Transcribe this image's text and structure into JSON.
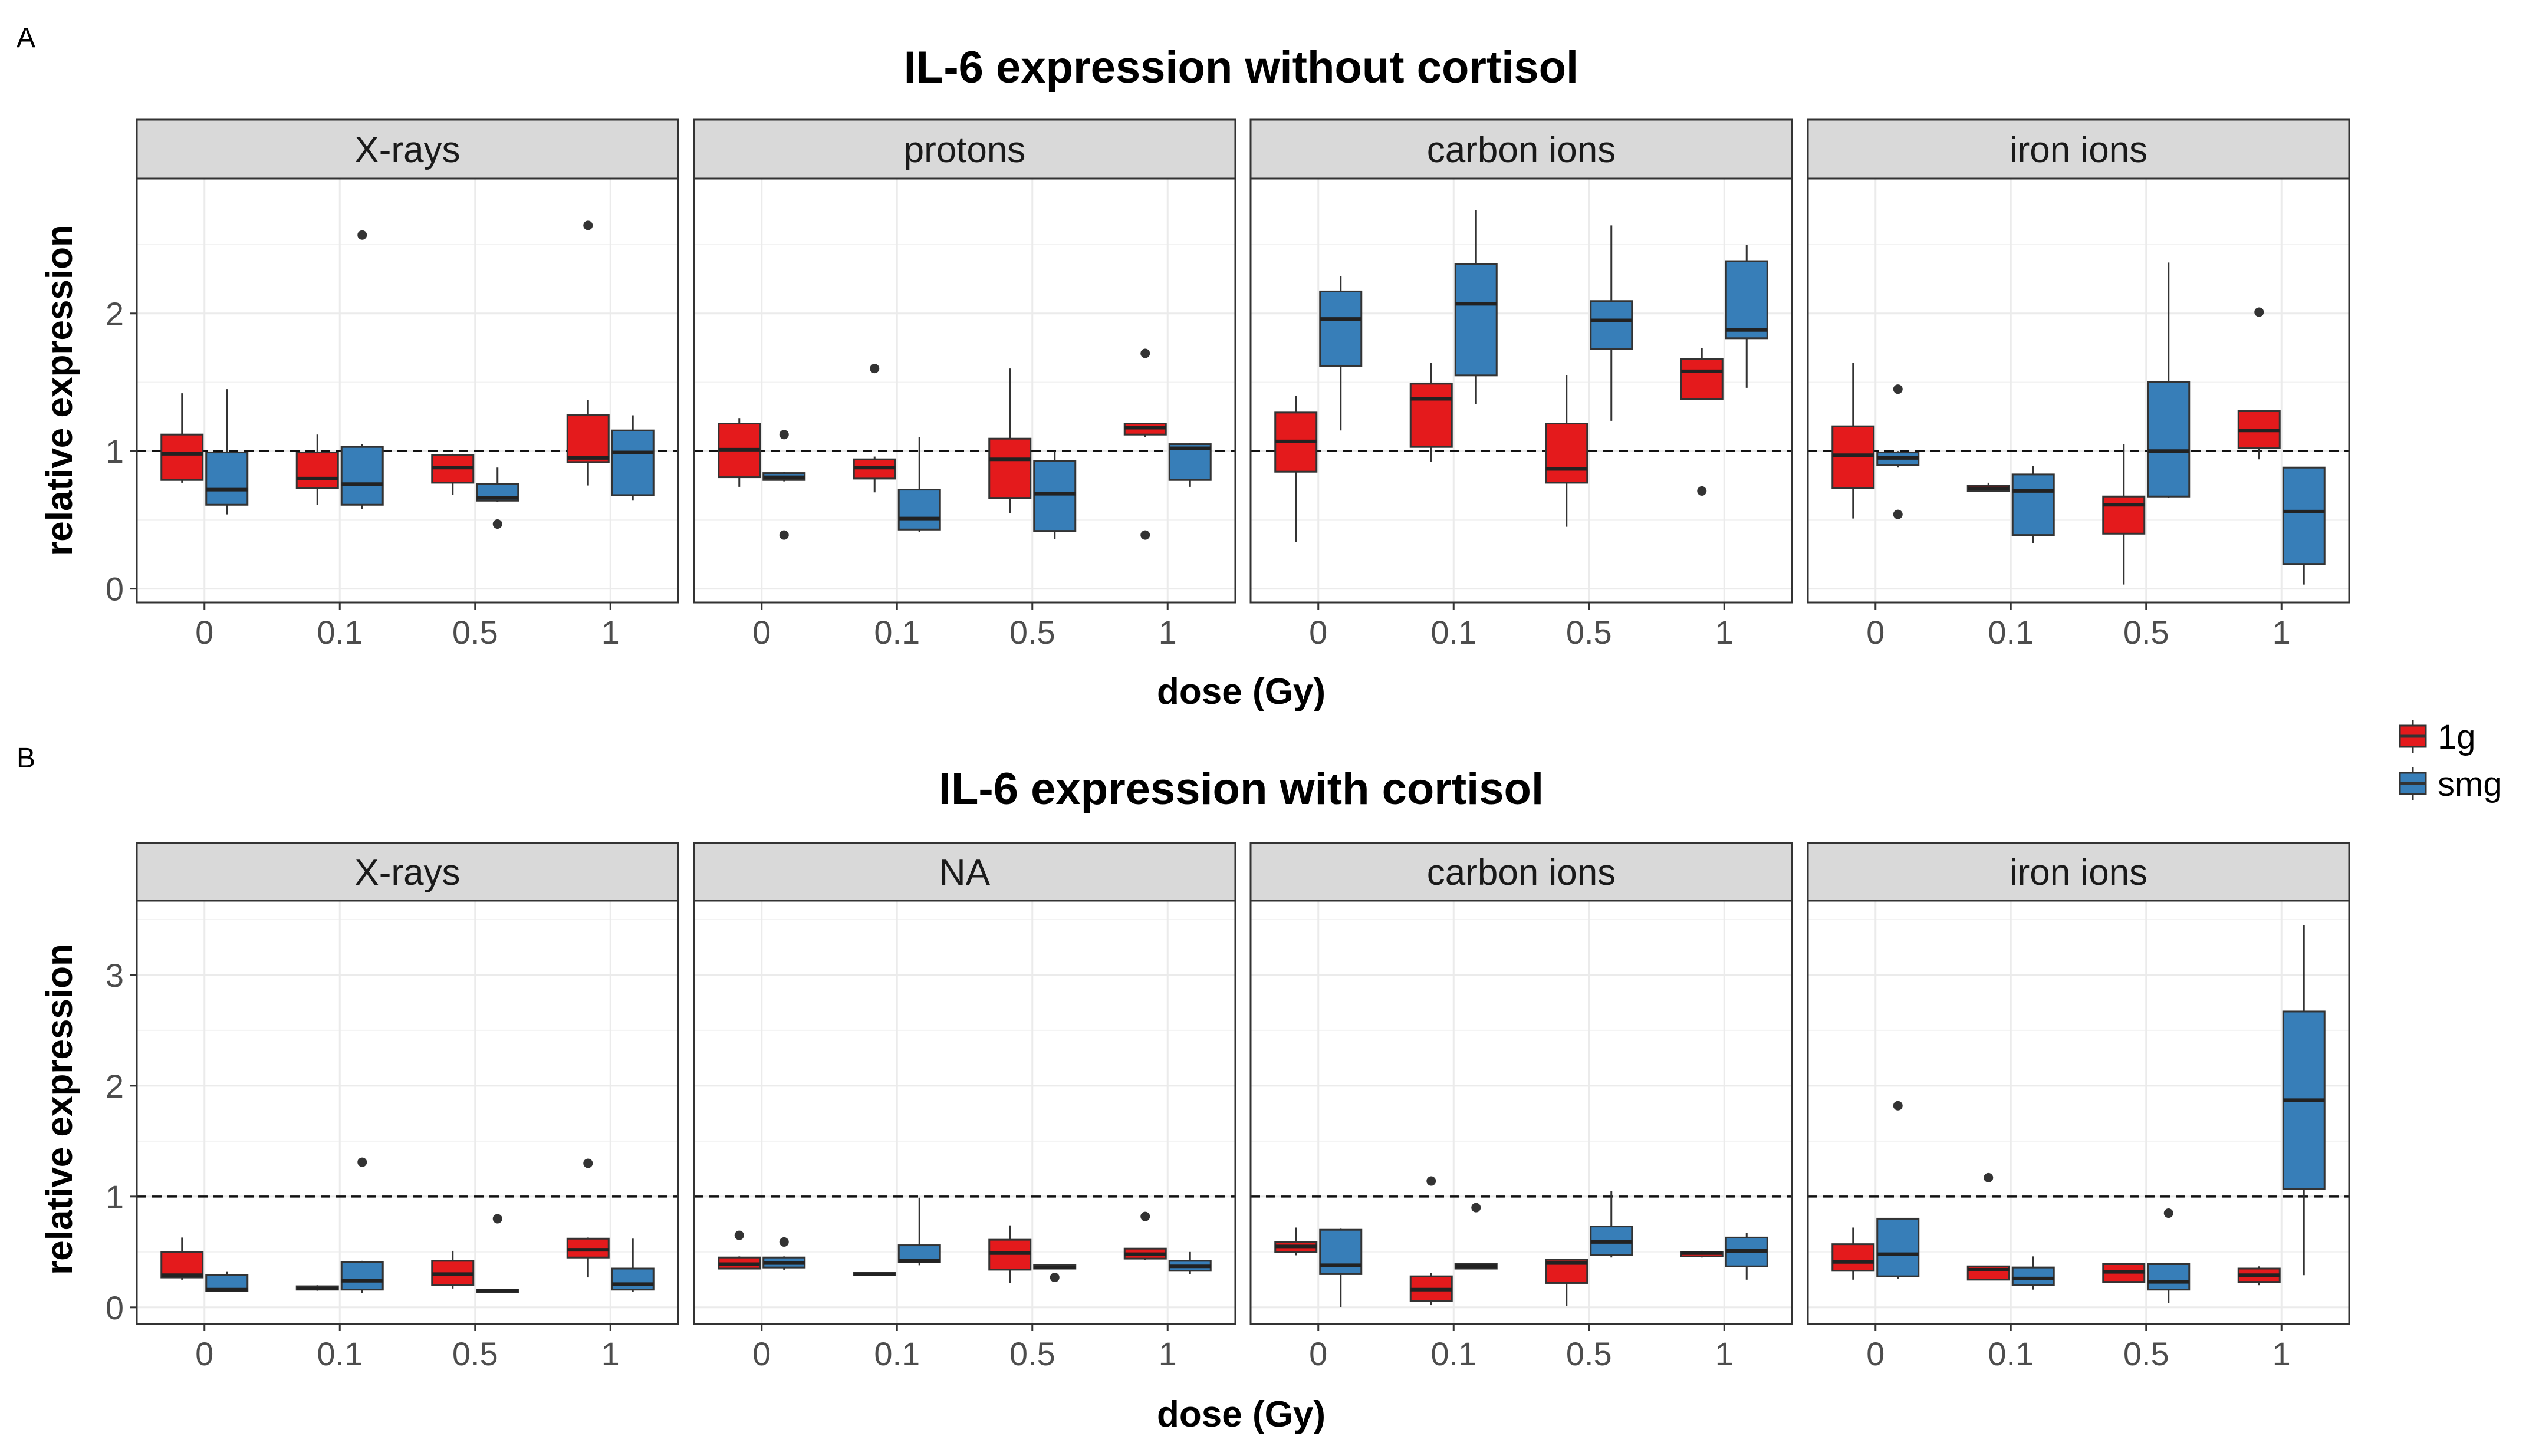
{
  "colors": {
    "1g": "#E41A1C",
    "smg": "#377EB8",
    "strip": "#D9D9D9",
    "grid": "#EBEBEB",
    "border": "#333333",
    "whisker": "#333333"
  },
  "legend": {
    "items": [
      {
        "key": "1g",
        "label": "1g"
      },
      {
        "key": "smg",
        "label": "smg"
      }
    ]
  },
  "chart_data": [
    {
      "type": "boxplot",
      "panel_label": "A",
      "title": "IL-6 expression without cortisol",
      "xlabel": "dose (Gy)",
      "ylabel": "relative expression",
      "ylim": [
        -0.1,
        2.98
      ],
      "yticks": [
        0,
        1,
        2
      ],
      "reference_line": 1,
      "categories": [
        "0",
        "0.1",
        "0.5",
        "1"
      ],
      "facets": [
        {
          "label": "X-rays",
          "groups": [
            {
              "dose": "0",
              "series": "1g",
              "min": 0.77,
              "q1": 0.79,
              "median": 0.98,
              "q3": 1.12,
              "max": 1.42,
              "outliers": []
            },
            {
              "dose": "0",
              "series": "smg",
              "min": 0.54,
              "q1": 0.61,
              "median": 0.72,
              "q3": 0.99,
              "max": 1.45,
              "outliers": []
            },
            {
              "dose": "0.1",
              "series": "1g",
              "min": 0.61,
              "q1": 0.73,
              "median": 0.8,
              "q3": 0.99,
              "max": 1.12,
              "outliers": []
            },
            {
              "dose": "0.1",
              "series": "smg",
              "min": 0.58,
              "q1": 0.61,
              "median": 0.76,
              "q3": 1.03,
              "max": 1.05,
              "outliers": [
                2.57
              ]
            },
            {
              "dose": "0.5",
              "series": "1g",
              "min": 0.68,
              "q1": 0.77,
              "median": 0.88,
              "q3": 0.97,
              "max": 0.98,
              "outliers": []
            },
            {
              "dose": "0.5",
              "series": "smg",
              "min": 0.63,
              "q1": 0.64,
              "median": 0.66,
              "q3": 0.76,
              "max": 0.88,
              "outliers": [
                0.47
              ]
            },
            {
              "dose": "1",
              "series": "1g",
              "min": 0.75,
              "q1": 0.92,
              "median": 0.95,
              "q3": 1.26,
              "max": 1.37,
              "outliers": [
                2.64
              ]
            },
            {
              "dose": "1",
              "series": "smg",
              "min": 0.64,
              "q1": 0.68,
              "median": 0.99,
              "q3": 1.15,
              "max": 1.26,
              "outliers": []
            }
          ]
        },
        {
          "label": "protons",
          "groups": [
            {
              "dose": "0",
              "series": "1g",
              "min": 0.74,
              "q1": 0.81,
              "median": 1.01,
              "q3": 1.2,
              "max": 1.24,
              "outliers": []
            },
            {
              "dose": "0",
              "series": "smg",
              "min": 0.78,
              "q1": 0.79,
              "median": 0.81,
              "q3": 0.84,
              "max": 0.85,
              "outliers": [
                1.12,
                0.39
              ]
            },
            {
              "dose": "0.1",
              "series": "1g",
              "min": 0.7,
              "q1": 0.8,
              "median": 0.88,
              "q3": 0.94,
              "max": 0.96,
              "outliers": [
                1.6
              ]
            },
            {
              "dose": "0.1",
              "series": "smg",
              "min": 0.41,
              "q1": 0.43,
              "median": 0.51,
              "q3": 0.72,
              "max": 1.1,
              "outliers": []
            },
            {
              "dose": "0.5",
              "series": "1g",
              "min": 0.55,
              "q1": 0.66,
              "median": 0.94,
              "q3": 1.09,
              "max": 1.6,
              "outliers": []
            },
            {
              "dose": "0.5",
              "series": "smg",
              "min": 0.36,
              "q1": 0.42,
              "median": 0.69,
              "q3": 0.93,
              "max": 1.0,
              "outliers": []
            },
            {
              "dose": "1",
              "series": "1g",
              "min": 1.1,
              "q1": 1.12,
              "median": 1.17,
              "q3": 1.2,
              "max": 1.2,
              "outliers": [
                1.71,
                0.39
              ]
            },
            {
              "dose": "1",
              "series": "smg",
              "min": 0.74,
              "q1": 0.79,
              "median": 1.02,
              "q3": 1.05,
              "max": 1.06,
              "outliers": []
            }
          ]
        },
        {
          "label": "carbon ions",
          "groups": [
            {
              "dose": "0",
              "series": "1g",
              "min": 0.34,
              "q1": 0.85,
              "median": 1.07,
              "q3": 1.28,
              "max": 1.4,
              "outliers": []
            },
            {
              "dose": "0",
              "series": "smg",
              "min": 1.15,
              "q1": 1.62,
              "median": 1.96,
              "q3": 2.16,
              "max": 2.27,
              "outliers": []
            },
            {
              "dose": "0.1",
              "series": "1g",
              "min": 0.92,
              "q1": 1.03,
              "median": 1.38,
              "q3": 1.49,
              "max": 1.64,
              "outliers": []
            },
            {
              "dose": "0.1",
              "series": "smg",
              "min": 1.34,
              "q1": 1.55,
              "median": 2.07,
              "q3": 2.36,
              "max": 2.75,
              "outliers": []
            },
            {
              "dose": "0.5",
              "series": "1g",
              "min": 0.45,
              "q1": 0.77,
              "median": 0.87,
              "q3": 1.2,
              "max": 1.55,
              "outliers": []
            },
            {
              "dose": "0.5",
              "series": "smg",
              "min": 1.22,
              "q1": 1.74,
              "median": 1.95,
              "q3": 2.09,
              "max": 2.64,
              "outliers": []
            },
            {
              "dose": "1",
              "series": "1g",
              "min": 1.37,
              "q1": 1.38,
              "median": 1.58,
              "q3": 1.67,
              "max": 1.75,
              "outliers": [
                0.71
              ]
            },
            {
              "dose": "1",
              "series": "smg",
              "min": 1.46,
              "q1": 1.82,
              "median": 1.88,
              "q3": 2.38,
              "max": 2.5,
              "outliers": []
            }
          ]
        },
        {
          "label": "iron ions",
          "groups": [
            {
              "dose": "0",
              "series": "1g",
              "min": 0.51,
              "q1": 0.73,
              "median": 0.97,
              "q3": 1.18,
              "max": 1.64,
              "outliers": []
            },
            {
              "dose": "0",
              "series": "smg",
              "min": 0.88,
              "q1": 0.9,
              "median": 0.95,
              "q3": 0.99,
              "max": 1.0,
              "outliers": [
                1.45,
                0.54
              ]
            },
            {
              "dose": "0.1",
              "series": "1g",
              "min": 0.71,
              "q1": 0.71,
              "median": 0.73,
              "q3": 0.75,
              "max": 0.77,
              "outliers": []
            },
            {
              "dose": "0.1",
              "series": "smg",
              "min": 0.33,
              "q1": 0.39,
              "median": 0.71,
              "q3": 0.83,
              "max": 0.89,
              "outliers": []
            },
            {
              "dose": "0.5",
              "series": "1g",
              "min": 0.03,
              "q1": 0.4,
              "median": 0.61,
              "q3": 0.67,
              "max": 1.05,
              "outliers": []
            },
            {
              "dose": "0.5",
              "series": "smg",
              "min": 0.66,
              "q1": 0.67,
              "median": 1.0,
              "q3": 1.5,
              "max": 2.37,
              "outliers": []
            },
            {
              "dose": "1",
              "series": "1g",
              "min": 0.94,
              "q1": 1.02,
              "median": 1.15,
              "q3": 1.29,
              "max": 1.29,
              "outliers": [
                2.01
              ]
            },
            {
              "dose": "1",
              "series": "smg",
              "min": 0.03,
              "q1": 0.18,
              "median": 0.56,
              "q3": 0.88,
              "max": 0.88,
              "outliers": []
            }
          ]
        }
      ]
    },
    {
      "type": "boxplot",
      "panel_label": "B",
      "title": "IL-6 expression with cortisol",
      "xlabel": "dose (Gy)",
      "ylabel": "relative expression",
      "ylim": [
        -0.15,
        3.67
      ],
      "yticks": [
        0,
        1,
        2,
        3
      ],
      "reference_line": 1,
      "categories": [
        "0",
        "0.1",
        "0.5",
        "1"
      ],
      "facets": [
        {
          "label": "X-rays",
          "groups": [
            {
              "dose": "0",
              "series": "1g",
              "min": 0.25,
              "q1": 0.27,
              "median": 0.29,
              "q3": 0.5,
              "max": 0.63,
              "outliers": []
            },
            {
              "dose": "0",
              "series": "smg",
              "min": 0.14,
              "q1": 0.15,
              "median": 0.16,
              "q3": 0.29,
              "max": 0.32,
              "outliers": []
            },
            {
              "dose": "0.1",
              "series": "1g",
              "min": 0.15,
              "q1": 0.16,
              "median": 0.17,
              "q3": 0.19,
              "max": 0.2,
              "outliers": []
            },
            {
              "dose": "0.1",
              "series": "smg",
              "min": 0.13,
              "q1": 0.16,
              "median": 0.24,
              "q3": 0.41,
              "max": 0.42,
              "outliers": [
                1.31
              ]
            },
            {
              "dose": "0.5",
              "series": "1g",
              "min": 0.17,
              "q1": 0.2,
              "median": 0.3,
              "q3": 0.42,
              "max": 0.51,
              "outliers": []
            },
            {
              "dose": "0.5",
              "series": "smg",
              "min": 0.13,
              "q1": 0.14,
              "median": 0.15,
              "q3": 0.16,
              "max": 0.16,
              "outliers": [
                0.8
              ]
            },
            {
              "dose": "1",
              "series": "1g",
              "min": 0.27,
              "q1": 0.45,
              "median": 0.52,
              "q3": 0.62,
              "max": 0.63,
              "outliers": [
                1.3
              ]
            },
            {
              "dose": "1",
              "series": "smg",
              "min": 0.14,
              "q1": 0.16,
              "median": 0.21,
              "q3": 0.35,
              "max": 0.62,
              "outliers": []
            }
          ]
        },
        {
          "label": "NA",
          "groups": [
            {
              "dose": "0",
              "series": "1g",
              "min": 0.35,
              "q1": 0.35,
              "median": 0.39,
              "q3": 0.45,
              "max": 0.46,
              "outliers": [
                0.65
              ]
            },
            {
              "dose": "0",
              "series": "smg",
              "min": 0.34,
              "q1": 0.36,
              "median": 0.4,
              "q3": 0.45,
              "max": 0.46,
              "outliers": [
                0.59
              ]
            },
            {
              "dose": "0.1",
              "series": "1g",
              "min": 0.29,
              "q1": 0.29,
              "median": 0.3,
              "q3": 0.31,
              "max": 0.31,
              "outliers": []
            },
            {
              "dose": "0.1",
              "series": "smg",
              "min": 0.38,
              "q1": 0.41,
              "median": 0.42,
              "q3": 0.56,
              "max": 0.99,
              "outliers": []
            },
            {
              "dose": "0.5",
              "series": "1g",
              "min": 0.22,
              "q1": 0.34,
              "median": 0.49,
              "q3": 0.61,
              "max": 0.74,
              "outliers": []
            },
            {
              "dose": "0.5",
              "series": "smg",
              "min": 0.35,
              "q1": 0.35,
              "median": 0.36,
              "q3": 0.38,
              "max": 0.38,
              "outliers": [
                0.27
              ]
            },
            {
              "dose": "1",
              "series": "1g",
              "min": 0.43,
              "q1": 0.44,
              "median": 0.48,
              "q3": 0.53,
              "max": 0.53,
              "outliers": [
                0.82
              ]
            },
            {
              "dose": "1",
              "series": "smg",
              "min": 0.3,
              "q1": 0.33,
              "median": 0.37,
              "q3": 0.42,
              "max": 0.5,
              "outliers": []
            }
          ]
        },
        {
          "label": "carbon ions",
          "groups": [
            {
              "dose": "0",
              "series": "1g",
              "min": 0.47,
              "q1": 0.5,
              "median": 0.55,
              "q3": 0.59,
              "max": 0.72,
              "outliers": []
            },
            {
              "dose": "0",
              "series": "smg",
              "min": 0.0,
              "q1": 0.3,
              "median": 0.38,
              "q3": 0.7,
              "max": 0.71,
              "outliers": []
            },
            {
              "dose": "0.1",
              "series": "1g",
              "min": 0.02,
              "q1": 0.06,
              "median": 0.16,
              "q3": 0.28,
              "max": 0.31,
              "outliers": [
                1.14
              ]
            },
            {
              "dose": "0.1",
              "series": "smg",
              "min": 0.35,
              "q1": 0.35,
              "median": 0.37,
              "q3": 0.39,
              "max": 0.39,
              "outliers": [
                0.9
              ]
            },
            {
              "dose": "0.5",
              "series": "1g",
              "min": 0.01,
              "q1": 0.22,
              "median": 0.4,
              "q3": 0.43,
              "max": 0.43,
              "outliers": []
            },
            {
              "dose": "0.5",
              "series": "smg",
              "min": 0.45,
              "q1": 0.47,
              "median": 0.59,
              "q3": 0.73,
              "max": 1.05,
              "outliers": []
            },
            {
              "dose": "1",
              "series": "1g",
              "min": 0.45,
              "q1": 0.46,
              "median": 0.49,
              "q3": 0.5,
              "max": 0.51,
              "outliers": []
            },
            {
              "dose": "1",
              "series": "smg",
              "min": 0.25,
              "q1": 0.37,
              "median": 0.51,
              "q3": 0.63,
              "max": 0.67,
              "outliers": []
            }
          ]
        },
        {
          "label": "iron ions",
          "groups": [
            {
              "dose": "0",
              "series": "1g",
              "min": 0.25,
              "q1": 0.33,
              "median": 0.41,
              "q3": 0.57,
              "max": 0.72,
              "outliers": []
            },
            {
              "dose": "0",
              "series": "smg",
              "min": 0.26,
              "q1": 0.28,
              "median": 0.48,
              "q3": 0.8,
              "max": 0.8,
              "outliers": [
                1.82
              ]
            },
            {
              "dose": "0.1",
              "series": "1g",
              "min": 0.25,
              "q1": 0.25,
              "median": 0.34,
              "q3": 0.37,
              "max": 0.37,
              "outliers": [
                1.17
              ]
            },
            {
              "dose": "0.1",
              "series": "smg",
              "min": 0.16,
              "q1": 0.2,
              "median": 0.26,
              "q3": 0.36,
              "max": 0.46,
              "outliers": []
            },
            {
              "dose": "0.5",
              "series": "1g",
              "min": 0.23,
              "q1": 0.23,
              "median": 0.32,
              "q3": 0.39,
              "max": 0.4,
              "outliers": []
            },
            {
              "dose": "0.5",
              "series": "smg",
              "min": 0.04,
              "q1": 0.16,
              "median": 0.23,
              "q3": 0.39,
              "max": 0.39,
              "outliers": [
                0.85
              ]
            },
            {
              "dose": "1",
              "series": "1g",
              "min": 0.2,
              "q1": 0.23,
              "median": 0.29,
              "q3": 0.35,
              "max": 0.37,
              "outliers": []
            },
            {
              "dose": "1",
              "series": "smg",
              "min": 0.29,
              "q1": 1.07,
              "median": 1.87,
              "q3": 2.67,
              "max": 3.45,
              "outliers": []
            }
          ]
        }
      ]
    }
  ]
}
